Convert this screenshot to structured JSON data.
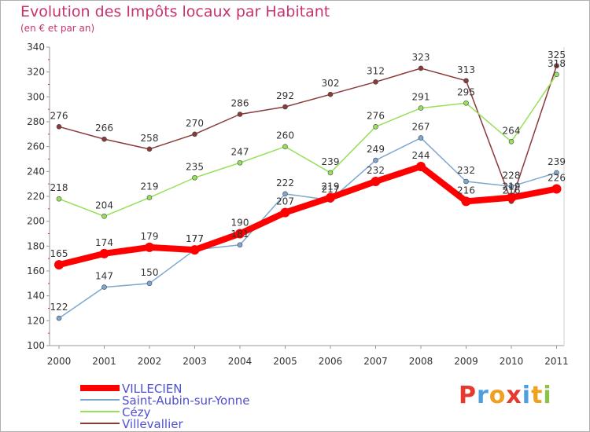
{
  "title": "Evolution des Impôts locaux par Habitant",
  "subtitle": "(en € et par an)",
  "logo_text": "Proxiti",
  "chart_data": {
    "type": "line",
    "x": [
      "2000",
      "2001",
      "2002",
      "2003",
      "2004",
      "2005",
      "2006",
      "2007",
      "2008",
      "2009",
      "2010",
      "2011"
    ],
    "ylim": [
      100,
      340
    ],
    "yticks": [
      100,
      120,
      140,
      160,
      180,
      200,
      220,
      240,
      260,
      280,
      300,
      320,
      340
    ],
    "grid": false,
    "legend_placement": "bottom-left",
    "series": [
      {
        "name": "VILLECIEN",
        "color": "#ff0000",
        "values": [
          165,
          174,
          179,
          177,
          190,
          207,
          219,
          232,
          244,
          216,
          219,
          226
        ]
      },
      {
        "name": "Saint-Aubin-sur-Yonne",
        "color": "#7ba7d0",
        "values": [
          122,
          147,
          150,
          177,
          181,
          222,
          217,
          249,
          267,
          232,
          228,
          239
        ]
      },
      {
        "name": "Cézy",
        "color": "#97e05a",
        "values": [
          218,
          204,
          219,
          235,
          247,
          260,
          239,
          276,
          291,
          295,
          264,
          318
        ]
      },
      {
        "name": "Villevallier",
        "color": "#8b3a3a",
        "values": [
          276,
          266,
          258,
          270,
          286,
          292,
          302,
          312,
          323,
          313,
          216,
          325
        ]
      }
    ]
  }
}
